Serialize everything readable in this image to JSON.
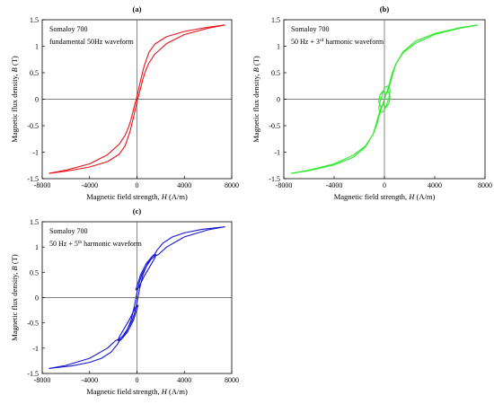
{
  "chart_data": [
    {
      "type": "line",
      "panel_label": "(a)",
      "annotation_lines": [
        {
          "text": "Somaloy 700"
        },
        {
          "text": "fundamental 50Hz waveform"
        }
      ],
      "xlabel_main": "Magnetic field strength, ",
      "xlabel_sym": "H",
      "xlabel_unit": " (A/m)",
      "ylabel_main": "Magnetic flux density, ",
      "ylabel_sym": "B",
      "ylabel_unit": " (T)",
      "xlim": [
        -8000,
        8000
      ],
      "ylim": [
        -1.5,
        1.5
      ],
      "xticks": [
        -8000,
        -4000,
        0,
        4000,
        8000
      ],
      "xtick_labels": [
        "-8000",
        "-4000",
        "0",
        "4000",
        "8000"
      ],
      "yticks": [
        -1.5,
        -1,
        -0.5,
        0,
        0.5,
        1,
        1.5
      ],
      "ytick_labels": [
        "-1.5",
        "-1",
        "-0.5",
        "0",
        "0.5",
        "1",
        "1.5"
      ],
      "grid": false,
      "color": "#e8141a",
      "series": [
        {
          "x": [
            -7400,
            -6000,
            -4000,
            -2500,
            -1500,
            -1000,
            -700,
            -500,
            -300,
            0,
            300,
            600,
            1000,
            1500,
            2500,
            4000,
            6000,
            7400
          ],
          "y": [
            -1.4,
            -1.34,
            -1.22,
            -1.05,
            -0.85,
            -0.68,
            -0.52,
            -0.38,
            -0.2,
            0.05,
            0.35,
            0.62,
            0.88,
            1.04,
            1.18,
            1.28,
            1.36,
            1.4
          ]
        },
        {
          "x": [
            7400,
            6000,
            4000,
            2500,
            1500,
            1000,
            700,
            500,
            300,
            0,
            -300,
            -600,
            -1000,
            -1500,
            -2500,
            -4000,
            -6000,
            -7400
          ],
          "y": [
            1.4,
            1.34,
            1.22,
            1.05,
            0.85,
            0.68,
            0.52,
            0.38,
            0.2,
            -0.05,
            -0.35,
            -0.62,
            -0.88,
            -1.04,
            -1.18,
            -1.28,
            -1.36,
            -1.4
          ]
        }
      ]
    },
    {
      "type": "line",
      "panel_label": "(b)",
      "annotation_lines": [
        {
          "text": "Somaloy 700"
        },
        {
          "text": "50 Hz + 3",
          "sup": "rd",
          "rest": " harmonic waveform"
        }
      ],
      "xlabel_main": "Magnetic field strength, ",
      "xlabel_sym": "H",
      "xlabel_unit": " (A/m)",
      "ylabel_main": "Magnetic flux density, ",
      "ylabel_sym": "B",
      "ylabel_unit": " (T)",
      "xlim": [
        -8000,
        8000
      ],
      "ylim": [
        -1.5,
        1.5
      ],
      "xticks": [
        -8000,
        -4000,
        0,
        4000,
        8000
      ],
      "xtick_labels": [
        "-8000",
        "-4000",
        "0",
        "4000",
        "8000"
      ],
      "yticks": [
        -1.5,
        -1,
        -0.5,
        0,
        0.5,
        1,
        1.5
      ],
      "ytick_labels": [
        "-1.5",
        "-1",
        "-0.5",
        "0",
        "0.5",
        "1",
        "1.5"
      ],
      "grid": false,
      "color": "#2ee82a",
      "series": [
        {
          "x": [
            -7400,
            -6000,
            -4000,
            -2500,
            -1500,
            -900,
            -600,
            -400,
            -250,
            -100,
            0,
            100,
            250,
            400,
            600,
            900,
            1500,
            2500,
            4000,
            6000,
            7400
          ],
          "y": [
            -1.4,
            -1.34,
            -1.22,
            -1.06,
            -0.88,
            -0.66,
            -0.48,
            -0.3,
            -0.18,
            -0.08,
            0.0,
            0.08,
            0.15,
            0.25,
            0.42,
            0.66,
            0.9,
            1.1,
            1.24,
            1.35,
            1.4
          ]
        },
        {
          "x": [
            7400,
            6000,
            4000,
            2500,
            1500,
            900,
            600,
            400,
            250,
            100,
            0,
            -100,
            -250,
            -400,
            -600,
            -900,
            -1500,
            -2500,
            -4000,
            -6000,
            -7400
          ],
          "y": [
            1.4,
            1.34,
            1.22,
            1.06,
            0.88,
            0.66,
            0.48,
            0.3,
            0.18,
            0.08,
            0.0,
            -0.08,
            -0.15,
            -0.25,
            -0.42,
            -0.66,
            -0.9,
            -1.1,
            -1.24,
            -1.35,
            -1.4
          ]
        },
        {
          "x": [
            -200,
            -350,
            -450,
            -400,
            -250,
            -50,
            150,
            350,
            450,
            400,
            250,
            50,
            -150,
            -200
          ],
          "y": [
            0.05,
            -0.05,
            -0.15,
            -0.22,
            -0.25,
            -0.22,
            -0.12,
            0.02,
            0.15,
            0.22,
            0.25,
            0.22,
            0.12,
            0.05
          ]
        },
        {
          "x": [
            -100,
            -300,
            -450,
            -350,
            -150,
            100,
            300,
            450,
            350,
            150,
            -100
          ],
          "y": [
            -0.1,
            -0.15,
            -0.05,
            0.08,
            0.15,
            0.1,
            0.15,
            0.05,
            -0.08,
            -0.15,
            -0.1
          ]
        }
      ]
    },
    {
      "type": "line",
      "panel_label": "(c)",
      "annotation_lines": [
        {
          "text": "Somaloy 700"
        },
        {
          "text": "50 Hz + 5",
          "sup": "th",
          "rest": " harmonic waveform"
        }
      ],
      "xlabel_main": "Magnetic field strength, ",
      "xlabel_sym": "H",
      "xlabel_unit": " (A/m)",
      "ylabel_main": "Magnetic flux density, ",
      "ylabel_sym": "B",
      "ylabel_unit": " (T)",
      "xlim": [
        -8000,
        8000
      ],
      "ylim": [
        -1.5,
        1.5
      ],
      "xticks": [
        -8000,
        -4000,
        0,
        4000,
        8000
      ],
      "xtick_labels": [
        "-8000",
        "-4000",
        "0",
        "4000",
        "8000"
      ],
      "yticks": [
        -1.5,
        -1,
        -0.5,
        0,
        0.5,
        1,
        1.5
      ],
      "ytick_labels": [
        "-1.5",
        "-1",
        "-0.5",
        "0",
        "0.5",
        "1",
        "1.5"
      ],
      "grid": false,
      "color": "#1414d2",
      "series": [
        {
          "x": [
            -7400,
            -6000,
            -4000,
            -2500,
            -1800,
            -1500,
            -1200,
            -800,
            -400,
            -200,
            0,
            200,
            500,
            900,
            1300,
            1500,
            1700,
            2200,
            3000,
            4000,
            5500,
            7400
          ],
          "y": [
            -1.4,
            -1.34,
            -1.2,
            -1.0,
            -0.85,
            -0.82,
            -0.76,
            -0.62,
            -0.45,
            -0.3,
            -0.1,
            0.15,
            0.45,
            0.68,
            0.82,
            0.86,
            0.94,
            1.08,
            1.2,
            1.28,
            1.35,
            1.4
          ]
        },
        {
          "x": [
            7400,
            6000,
            4000,
            2500,
            1800,
            1500,
            1200,
            800,
            400,
            200,
            0,
            -200,
            -500,
            -900,
            -1300,
            -1500,
            -1700,
            -2200,
            -3000,
            -4000,
            -5500,
            -7400
          ],
          "y": [
            1.4,
            1.34,
            1.2,
            1.0,
            0.85,
            0.82,
            0.76,
            0.62,
            0.45,
            0.3,
            0.1,
            -0.15,
            -0.45,
            -0.68,
            -0.82,
            -0.86,
            -0.94,
            -1.08,
            -1.2,
            -1.28,
            -1.35,
            -1.4
          ]
        },
        {
          "x": [
            -100,
            300,
            800,
            1300,
            1600,
            1500,
            1100,
            600,
            150,
            -100
          ],
          "y": [
            0.15,
            0.45,
            0.68,
            0.82,
            0.85,
            0.78,
            0.62,
            0.42,
            0.2,
            0.15
          ]
        },
        {
          "x": [
            100,
            -300,
            -800,
            -1300,
            -1600,
            -1500,
            -1100,
            -600,
            -150,
            100
          ],
          "y": [
            -0.15,
            -0.45,
            -0.68,
            -0.82,
            -0.85,
            -0.78,
            -0.62,
            -0.42,
            -0.2,
            -0.15
          ]
        }
      ]
    }
  ]
}
